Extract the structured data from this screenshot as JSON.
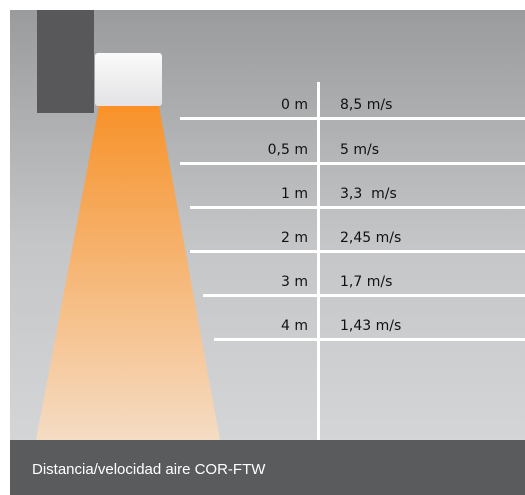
{
  "caption": "Distancia/velocidad aire COR-FTW",
  "colors": {
    "beam_top": "#f7922a",
    "beam_bottom": "#f5dcc4",
    "wall": "#58585a",
    "caption_bar": "#5a5b5d"
  },
  "rows": [
    {
      "distance": "0 m",
      "speed": "8,5 m/s"
    },
    {
      "distance": "0,5 m",
      "speed": "5 m/s"
    },
    {
      "distance": "1 m",
      "speed": "3,3  m/s"
    },
    {
      "distance": "2 m",
      "speed": "2,45 m/s"
    },
    {
      "distance": "3 m",
      "speed": "1,7 m/s"
    },
    {
      "distance": "4 m",
      "speed": "1,43 m/s"
    }
  ]
}
